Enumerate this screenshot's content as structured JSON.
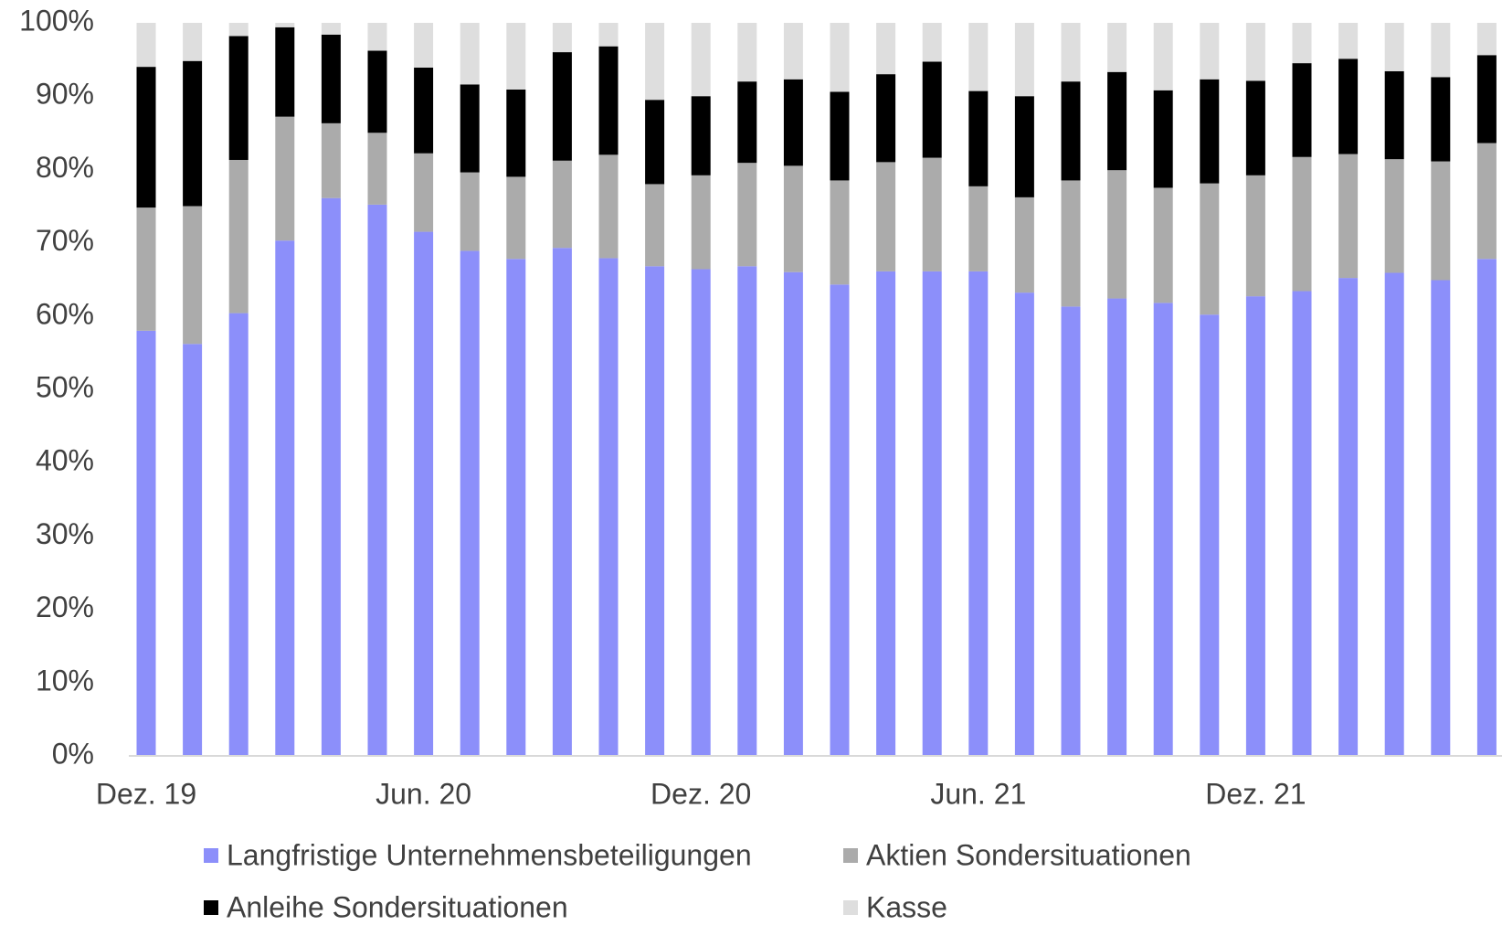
{
  "chart_data": {
    "type": "stacked_bar",
    "categories": [
      "Dez. 19",
      null,
      null,
      null,
      null,
      null,
      "Jun. 20",
      null,
      null,
      null,
      null,
      null,
      "Dez. 20",
      null,
      null,
      null,
      null,
      null,
      "Jun. 21",
      null,
      null,
      null,
      null,
      null,
      "Dez. 21",
      null,
      null,
      null,
      null,
      null
    ],
    "series": [
      {
        "name": "Langfristige Unternehmensbeteiligungen",
        "color": "#8c8ffa",
        "values": [
          58,
          56.2,
          60.4,
          70.3,
          76.1,
          75.2,
          71.5,
          68.9,
          67.8,
          69.3,
          67.9,
          66.8,
          66.4,
          66.8,
          66,
          64.3,
          66.1,
          66.1,
          66.1,
          63.2,
          61.3,
          62.4,
          61.8,
          60.2,
          62.7,
          63.4,
          65.2,
          65.9,
          64.9,
          67.8
        ]
      },
      {
        "name": "Aktien Sondersituationen",
        "color": "#ababab",
        "values": [
          16.8,
          18.8,
          20.9,
          16.9,
          10.2,
          9.8,
          10.7,
          10.7,
          11.2,
          11.9,
          14.1,
          11.2,
          12.8,
          14.1,
          14.5,
          14.2,
          14.9,
          15.5,
          11.6,
          13,
          17.2,
          17.5,
          15.7,
          17.9,
          16.5,
          18.3,
          16.9,
          15.5,
          16.2,
          15.8
        ]
      },
      {
        "name": "Anleihe Sondersituationen",
        "color": "#000000",
        "values": [
          19.2,
          19.8,
          16.9,
          12.2,
          12.1,
          11.2,
          11.7,
          12,
          11.9,
          14.8,
          14.8,
          11.5,
          10.8,
          11.1,
          11.8,
          12.1,
          12,
          13.1,
          13,
          13.8,
          13.5,
          13.4,
          13.3,
          14.2,
          12.9,
          12.8,
          13,
          12,
          11.5,
          12
        ]
      },
      {
        "name": "Kasse",
        "color": "#dedede",
        "values": [
          6,
          5.2,
          1.8,
          0.6,
          1.6,
          3.8,
          6.1,
          8.4,
          9.1,
          4,
          3.2,
          10.5,
          10,
          8,
          7.7,
          9.4,
          7,
          5.3,
          9.3,
          10,
          8,
          6.7,
          9.2,
          7.7,
          7.9,
          5.5,
          4.9,
          6.6,
          7.4,
          4.4
        ]
      }
    ],
    "ylim": [
      0,
      100
    ],
    "yticks": [
      {
        "value": 0,
        "label": "0%"
      },
      {
        "value": 10,
        "label": "10%"
      },
      {
        "value": 20,
        "label": "20%"
      },
      {
        "value": 30,
        "label": "30%"
      },
      {
        "value": 40,
        "label": "40%"
      },
      {
        "value": 50,
        "label": "50%"
      },
      {
        "value": 60,
        "label": "60%"
      },
      {
        "value": 70,
        "label": "70%"
      },
      {
        "value": 80,
        "label": "80%"
      },
      {
        "value": 90,
        "label": "90%"
      },
      {
        "value": 100,
        "label": "100%"
      }
    ],
    "legend": "bottom"
  }
}
